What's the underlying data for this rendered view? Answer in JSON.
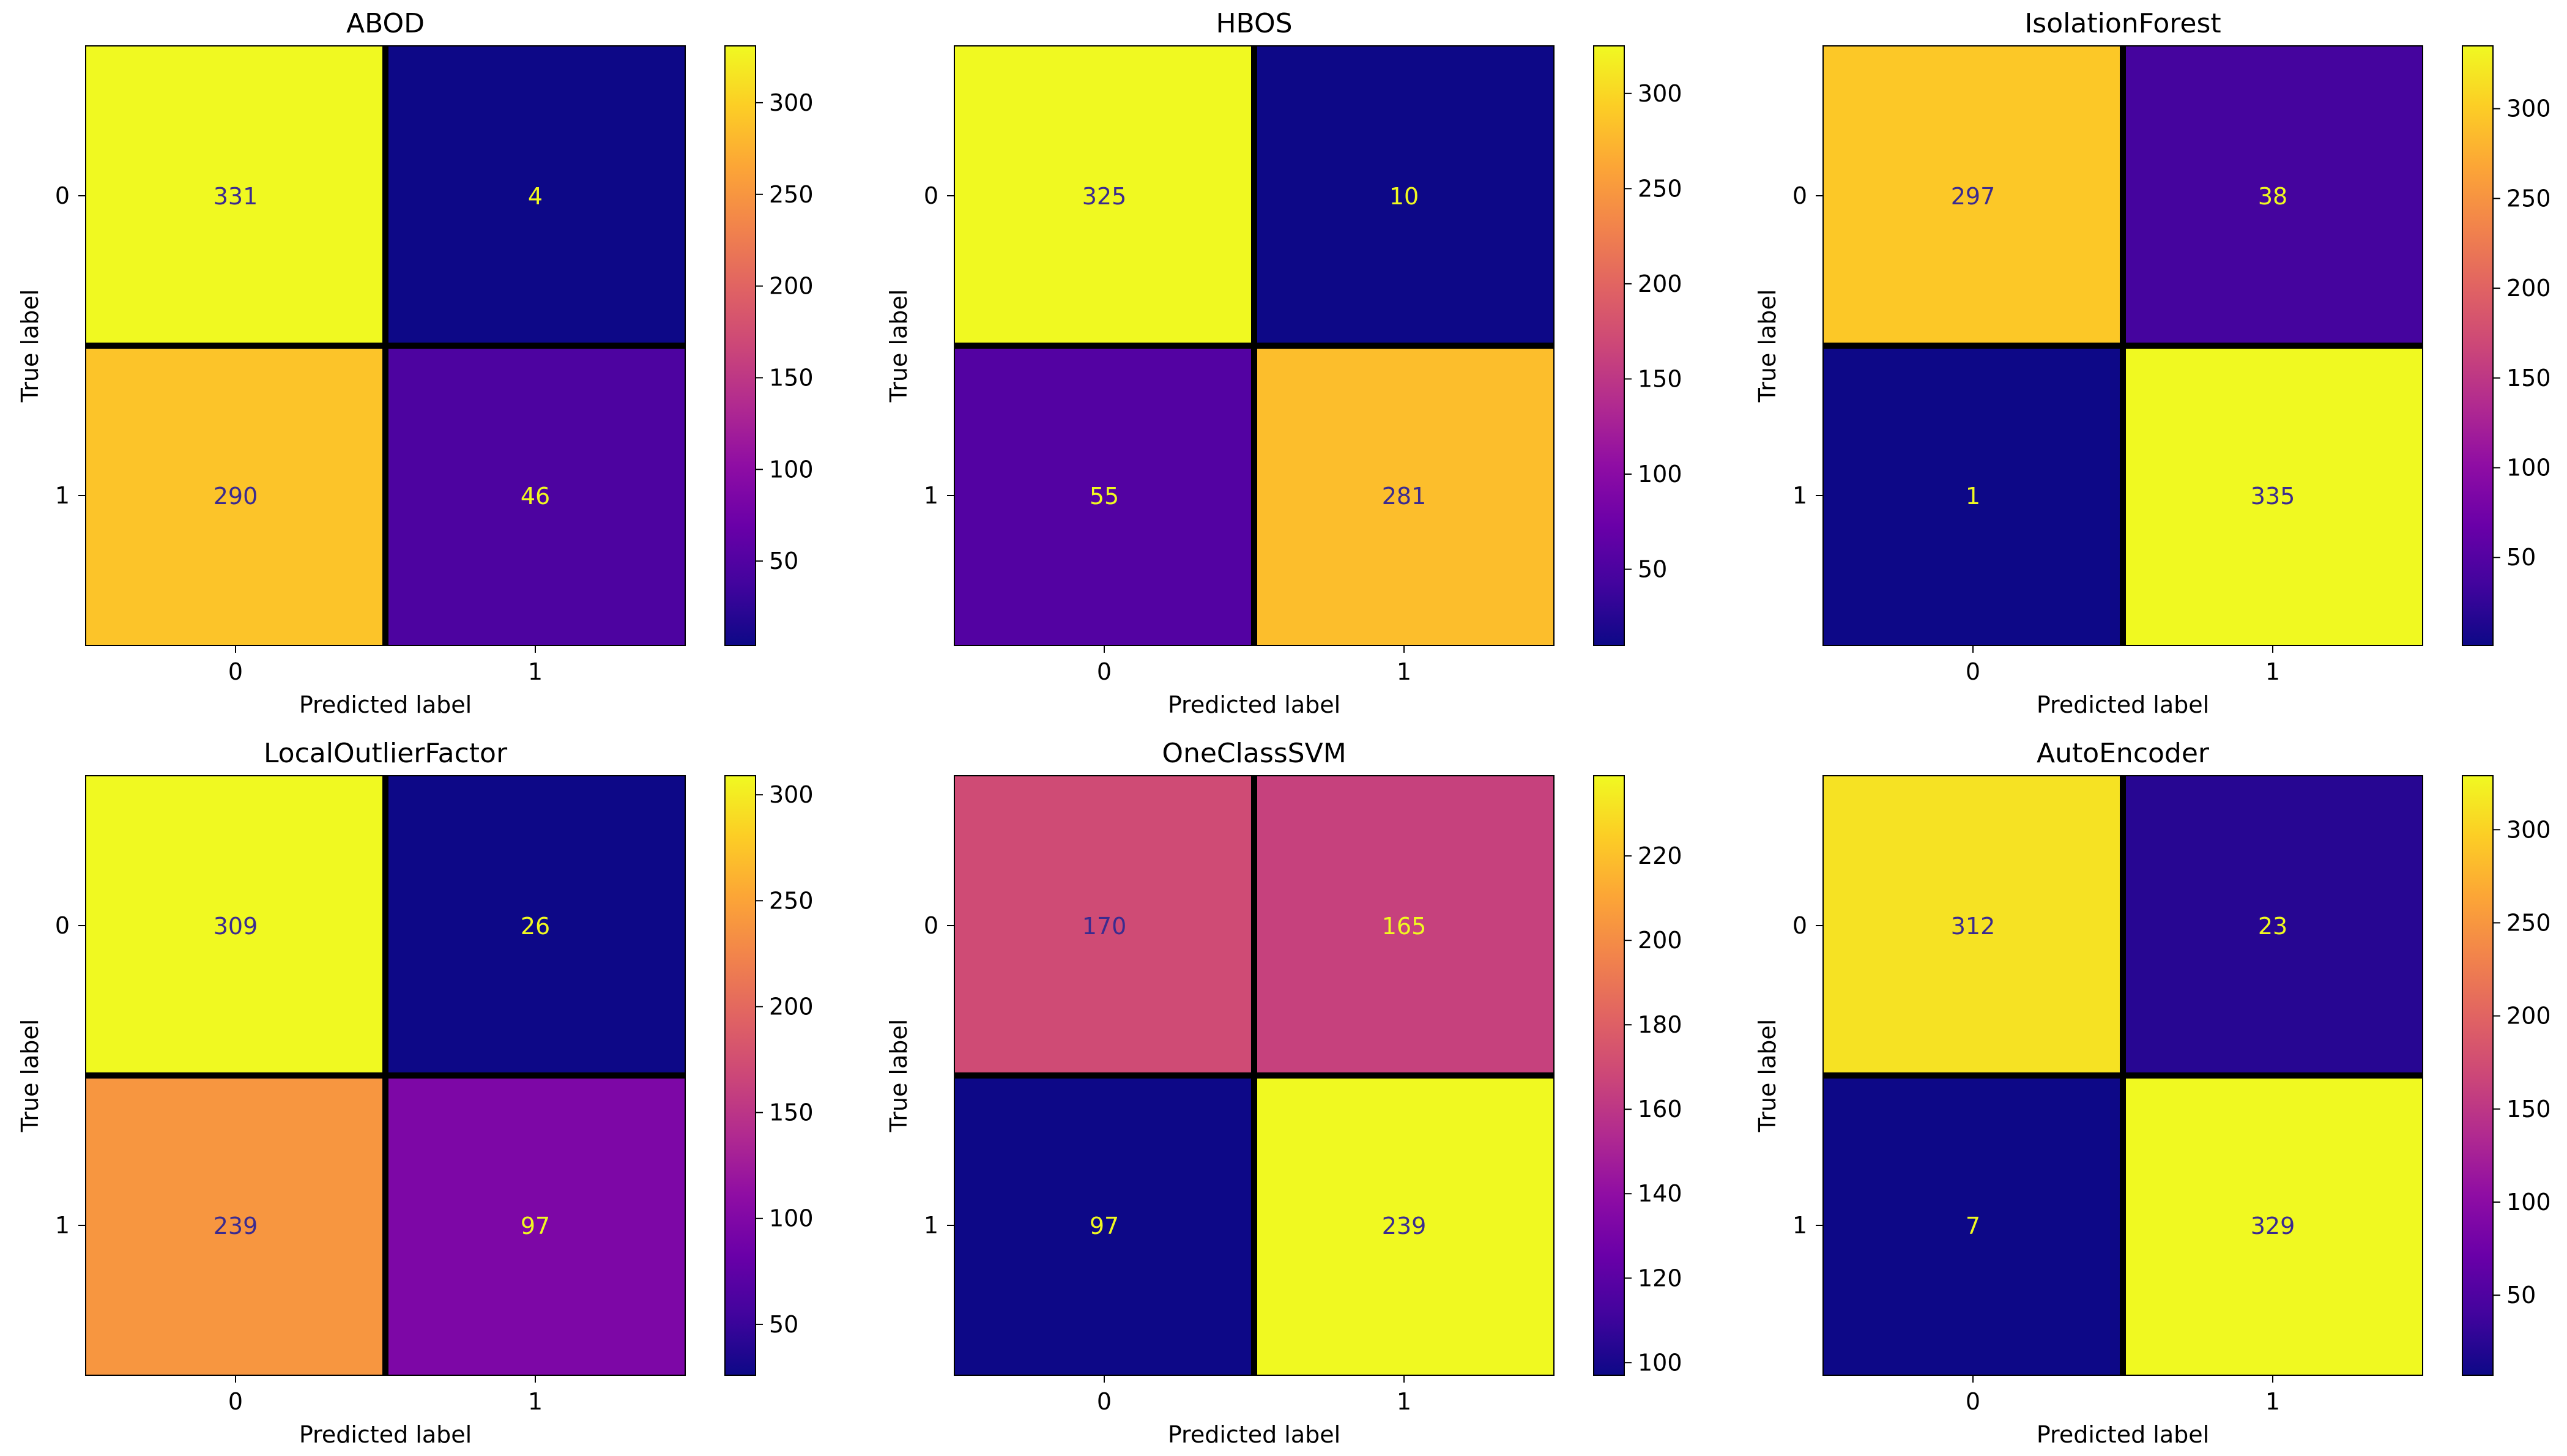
{
  "figure": {
    "cell_text_light": "#f0f921",
    "cell_text_dark": "#3b2b8f",
    "grid_color": "#000000"
  },
  "chart_data": [
    {
      "type": "heatmap",
      "title": "ABOD",
      "xlabel": "Predicted label",
      "ylabel": "True label",
      "x_tick_labels": [
        "0",
        "1"
      ],
      "y_tick_labels": [
        "0",
        "1"
      ],
      "matrix": [
        [
          331,
          4
        ],
        [
          290,
          46
        ]
      ],
      "colorbar": {
        "min": 4,
        "max": 331,
        "ticks": [
          50,
          100,
          150,
          200,
          250,
          300
        ]
      }
    },
    {
      "type": "heatmap",
      "title": "HBOS",
      "xlabel": "Predicted label",
      "ylabel": "True label",
      "x_tick_labels": [
        "0",
        "1"
      ],
      "y_tick_labels": [
        "0",
        "1"
      ],
      "matrix": [
        [
          325,
          10
        ],
        [
          55,
          281
        ]
      ],
      "colorbar": {
        "min": 10,
        "max": 325,
        "ticks": [
          50,
          100,
          150,
          200,
          250,
          300
        ]
      }
    },
    {
      "type": "heatmap",
      "title": "IsolationForest",
      "xlabel": "Predicted label",
      "ylabel": "True label",
      "x_tick_labels": [
        "0",
        "1"
      ],
      "y_tick_labels": [
        "0",
        "1"
      ],
      "matrix": [
        [
          297,
          38
        ],
        [
          1,
          335
        ]
      ],
      "colorbar": {
        "min": 1,
        "max": 335,
        "ticks": [
          50,
          100,
          150,
          200,
          250,
          300
        ]
      }
    },
    {
      "type": "heatmap",
      "title": "LocalOutlierFactor",
      "xlabel": "Predicted label",
      "ylabel": "True label",
      "x_tick_labels": [
        "0",
        "1"
      ],
      "y_tick_labels": [
        "0",
        "1"
      ],
      "matrix": [
        [
          309,
          26
        ],
        [
          239,
          97
        ]
      ],
      "colorbar": {
        "min": 26,
        "max": 309,
        "ticks": [
          50,
          100,
          150,
          200,
          250,
          300
        ]
      }
    },
    {
      "type": "heatmap",
      "title": "OneClassSVM",
      "xlabel": "Predicted label",
      "ylabel": "True label",
      "x_tick_labels": [
        "0",
        "1"
      ],
      "y_tick_labels": [
        "0",
        "1"
      ],
      "matrix": [
        [
          170,
          165
        ],
        [
          97,
          239
        ]
      ],
      "colorbar": {
        "min": 97,
        "max": 239,
        "ticks": [
          100,
          120,
          140,
          160,
          180,
          200,
          220
        ]
      }
    },
    {
      "type": "heatmap",
      "title": "AutoEncoder",
      "xlabel": "Predicted label",
      "ylabel": "True label",
      "x_tick_labels": [
        "0",
        "1"
      ],
      "y_tick_labels": [
        "0",
        "1"
      ],
      "matrix": [
        [
          312,
          23
        ],
        [
          7,
          329
        ]
      ],
      "colorbar": {
        "min": 7,
        "max": 329,
        "ticks": [
          50,
          100,
          150,
          200,
          250,
          300
        ]
      }
    }
  ]
}
